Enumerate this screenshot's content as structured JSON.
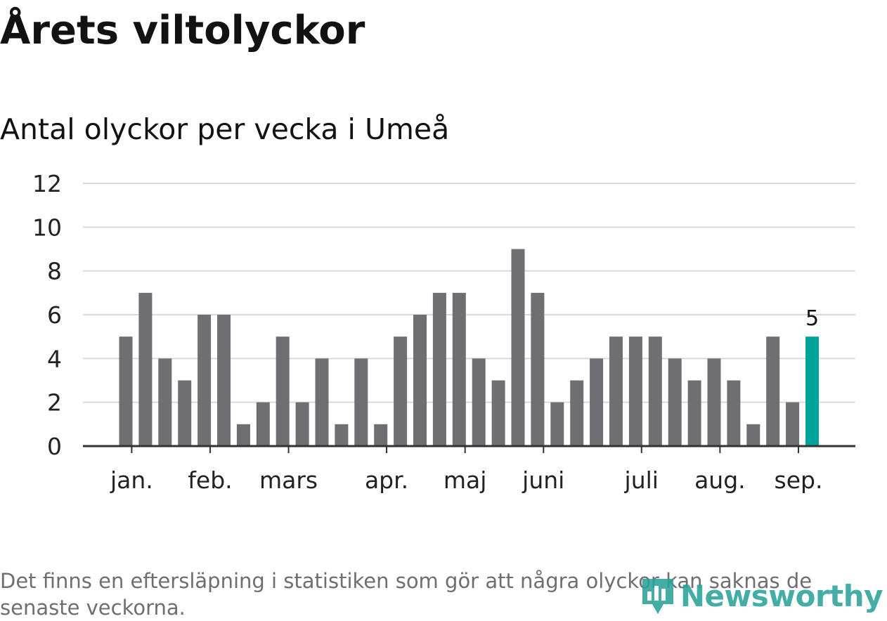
{
  "title": "Årets viltolyckor",
  "subtitle": "Antal olyckor per vecka i Umeå",
  "note": "Det finns en eftersläpning i statistiken som gör att några olyckor kan saknas de senaste veckorna.",
  "logo": {
    "text": "Newsworthy",
    "icon": "bar-chart-pin-icon"
  },
  "colors": {
    "bar": "#6f6e73",
    "highlight": "#00a39a",
    "grid": "#d9d9d9",
    "axis": "#333333",
    "text": "#121212"
  },
  "chart_data": {
    "type": "bar",
    "title": "Årets viltolyckor",
    "subtitle": "Antal olyckor per vecka i Umeå",
    "xlabel": "",
    "ylabel": "",
    "ylim": [
      0,
      12
    ],
    "yticks": [
      0,
      2,
      4,
      6,
      8,
      10,
      12
    ],
    "grid": true,
    "legend": "none",
    "values": [
      5,
      7,
      4,
      3,
      6,
      6,
      1,
      2,
      5,
      2,
      4,
      1,
      4,
      1,
      5,
      6,
      7,
      7,
      4,
      3,
      9,
      7,
      2,
      3,
      4,
      5,
      5,
      5,
      4,
      3,
      4,
      3,
      1,
      5,
      2,
      5
    ],
    "highlight_index": 35,
    "highlight_label": "5",
    "month_labels": [
      {
        "label": "jan.",
        "position": 0.3
      },
      {
        "label": "feb.",
        "position": 4.3
      },
      {
        "label": "mars",
        "position": 8.3
      },
      {
        "label": "apr.",
        "position": 13.3
      },
      {
        "label": "maj",
        "position": 17.3
      },
      {
        "label": "juni",
        "position": 21.3
      },
      {
        "label": "juli",
        "position": 26.3
      },
      {
        "label": "aug.",
        "position": 30.3
      },
      {
        "label": "sep.",
        "position": 34.3
      }
    ]
  }
}
